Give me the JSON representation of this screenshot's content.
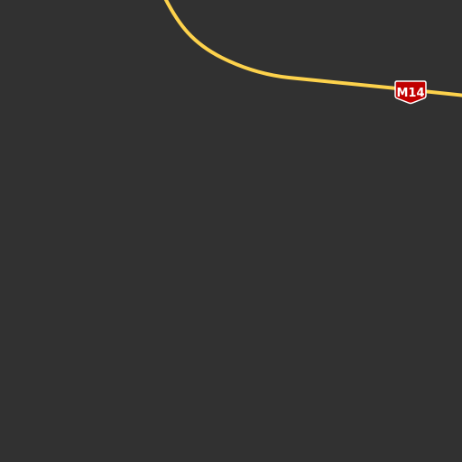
{
  "map": {
    "colors": {
      "background": "#313131",
      "road": "#fdd24c",
      "shield_fill": "#c10000",
      "shield_border": "#ffffff",
      "shield_text": "#ffffff"
    },
    "roads": [
      {
        "type": "highway",
        "ref": "M14"
      }
    ],
    "shields": [
      {
        "icon": "route-shield-icon",
        "label": "M14"
      }
    ]
  }
}
